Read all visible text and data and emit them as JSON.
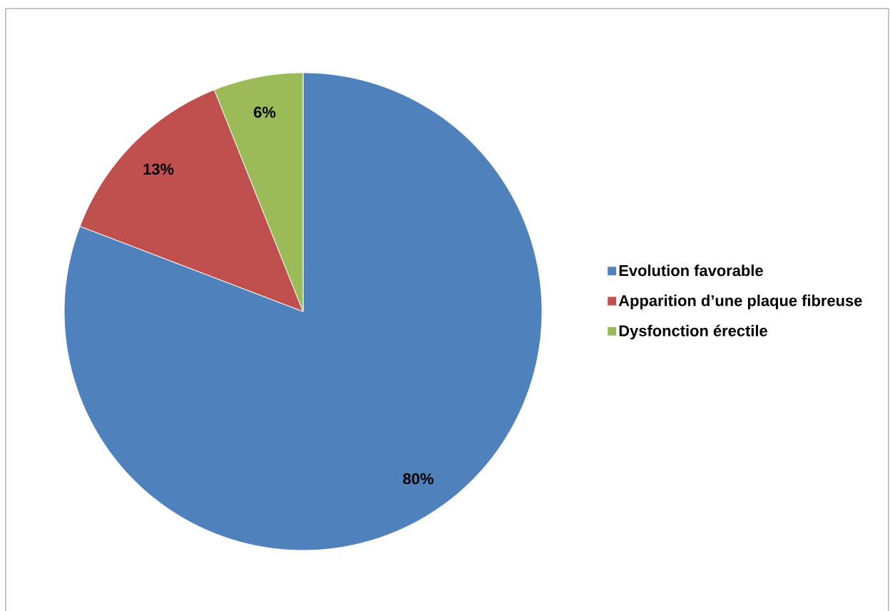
{
  "chart_data": {
    "type": "pie",
    "categories": [
      "Evolution favorable",
      "Apparition d’une plaque fibreuse",
      "Dysfonction érectile"
    ],
    "values": [
      80,
      13,
      6
    ],
    "colors": [
      "#4f81bd",
      "#c0504d",
      "#9bbb59"
    ],
    "value_labels": [
      "80%",
      "13%",
      "6%"
    ],
    "legend": "right"
  }
}
